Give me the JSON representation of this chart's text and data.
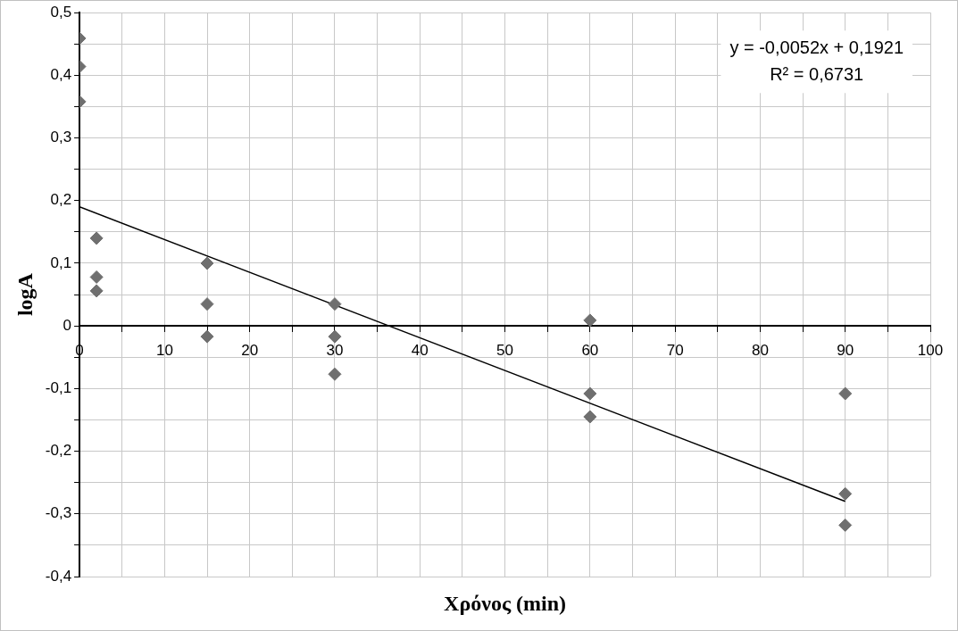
{
  "chart_data": {
    "type": "scatter",
    "xlabel": "Χρόνος (min)",
    "ylabel": "logA",
    "series": [
      {
        "color": "#6f6f6f",
        "x": [
          0,
          0,
          0,
          2,
          2,
          2,
          15,
          15,
          15,
          30,
          30,
          30,
          60,
          60,
          60,
          90,
          90,
          90
        ],
        "values": [
          0.459,
          0.414,
          0.358,
          0.14,
          0.078,
          0.056,
          0.1,
          0.035,
          -0.017,
          0.035,
          -0.017,
          -0.077,
          0.009,
          -0.108,
          -0.145,
          -0.108,
          -0.268,
          -0.318
        ]
      },
      {
        "type": "line",
        "marker": "none",
        "color": "#000000",
        "x": [
          0,
          90
        ],
        "values": [
          0.19,
          -0.28
        ]
      }
    ],
    "annotations": [
      "y = -0,0052x + 0,1921",
      "R² = 0,6731"
    ],
    "xlim": [
      0,
      100
    ],
    "xticks": [
      0,
      {
        "value": 5,
        "label": null
      },
      10,
      {
        "value": 15,
        "label": null
      },
      20,
      {
        "value": 25,
        "label": null
      },
      30,
      {
        "value": 35,
        "label": null
      },
      40,
      {
        "value": 45,
        "label": null
      },
      50,
      {
        "value": 55,
        "label": null
      },
      60,
      {
        "value": 65,
        "label": null
      },
      70,
      {
        "value": 75,
        "label": null
      },
      80,
      {
        "value": 85,
        "label": null
      },
      90,
      {
        "value": 95,
        "label": null
      },
      100
    ],
    "ylim": [
      -0.4,
      0.5
    ],
    "yticks": [
      {
        "value": -0.4,
        "label": "-0,4"
      },
      {
        "value": -0.35,
        "label": null
      },
      {
        "value": -0.3,
        "label": "-0,3"
      },
      {
        "value": -0.25,
        "label": null
      },
      {
        "value": -0.2,
        "label": "-0,2"
      },
      {
        "value": -0.15,
        "label": null
      },
      {
        "value": -0.1,
        "label": "-0,1"
      },
      {
        "value": -0.05,
        "label": null
      },
      {
        "value": 0,
        "label": "0"
      },
      {
        "value": 0.05,
        "label": null
      },
      {
        "value": 0.1,
        "label": "0,1"
      },
      {
        "value": 0.15,
        "label": null
      },
      {
        "value": 0.2,
        "label": "0,2"
      },
      {
        "value": 0.25,
        "label": null
      },
      {
        "value": 0.3,
        "label": "0,3"
      },
      {
        "value": 0.35,
        "label": null
      },
      {
        "value": 0.4,
        "label": "0,4"
      },
      {
        "value": 0.45,
        "label": null
      },
      {
        "value": 0.5,
        "label": "0,5"
      }
    ],
    "grid": true,
    "legend": false,
    "marker": "diamond",
    "line_style": "solid"
  }
}
